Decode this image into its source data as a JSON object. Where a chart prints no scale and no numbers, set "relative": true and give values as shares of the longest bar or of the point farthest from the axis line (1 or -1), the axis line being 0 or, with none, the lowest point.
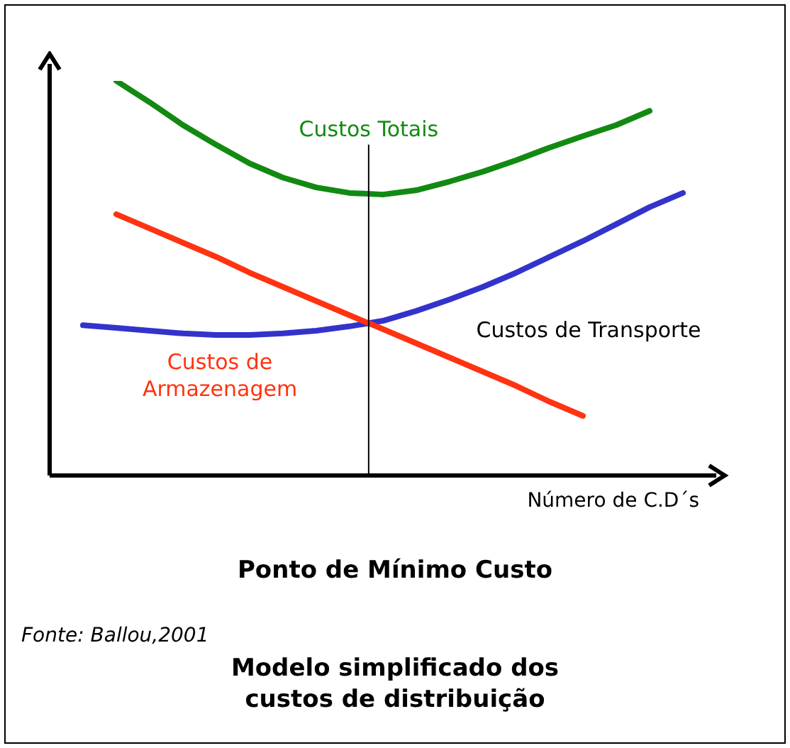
{
  "chart_data": {
    "type": "line",
    "relative": true,
    "title": "Modelo simplificado dos custos de distribuição",
    "xlabel": "Número de C.D´s",
    "categories": [
      null,
      null,
      null,
      null,
      null,
      null,
      null,
      null,
      null,
      null,
      null,
      null,
      null,
      null,
      null,
      null,
      null,
      null,
      null,
      null,
      null
    ],
    "series": [
      {
        "name": "Custos Totais",
        "color": "#128a12",
        "values": [
          null,
          null,
          1,
          0.946,
          0.888,
          0.838,
          0.791,
          0.755,
          0.73,
          0.716,
          0.712,
          0.723,
          0.745,
          0.77,
          0.799,
          0.831,
          0.86,
          0.888,
          0.924,
          null,
          null
        ]
      },
      {
        "name": "Custos de Armazenagem",
        "color": "#ff3311",
        "values": [
          null,
          null,
          0.662,
          0.626,
          0.59,
          0.554,
          0.514,
          0.478,
          0.442,
          0.406,
          0.371,
          0.335,
          0.299,
          0.263,
          0.227,
          0.187,
          0.151,
          null,
          null,
          null,
          null
        ]
      },
      {
        "name": "Custos de Transporte",
        "color": "#3333cc",
        "values": [
          null,
          0.381,
          0.374,
          0.367,
          0.36,
          0.356,
          0.356,
          0.36,
          0.367,
          0.378,
          0.392,
          0.417,
          0.446,
          0.478,
          0.514,
          0.554,
          0.594,
          0.637,
          0.68,
          0.716,
          null
        ]
      }
    ],
    "annotations": [
      "Ponto de Mínimo Custo",
      "Fonte: Ballou,2001"
    ],
    "legend": false,
    "marker": "none",
    "line_style": "solid"
  }
}
